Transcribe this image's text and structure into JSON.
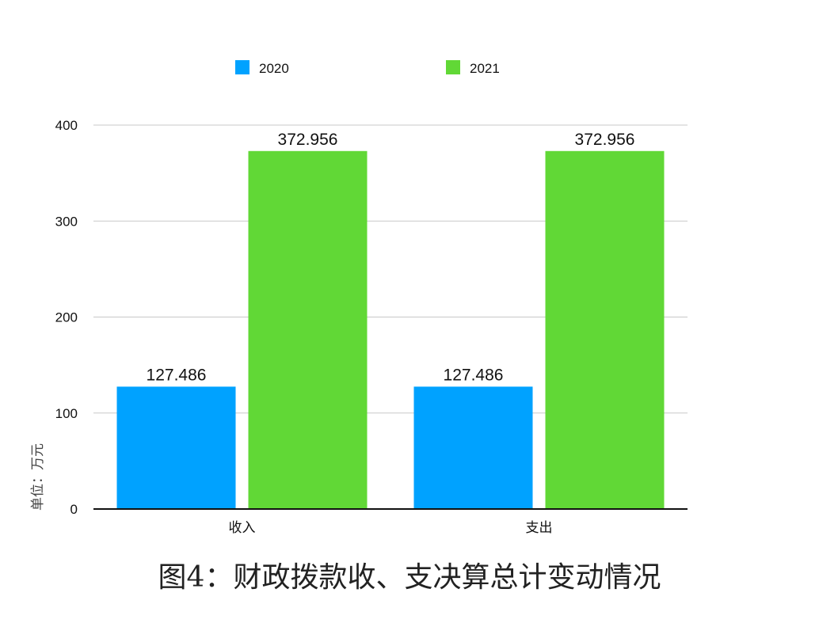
{
  "chart_data": {
    "type": "bar",
    "title": "图4：财政拨款收、支决算总计变动情况",
    "ylabel": "单位：万元",
    "xlabel": "",
    "categories": [
      "收入",
      "支出"
    ],
    "series": [
      {
        "name": "2020",
        "values": [
          127.486,
          127.486
        ],
        "labels": [
          "127.486",
          "127.486"
        ],
        "color": "#00A2FF"
      },
      {
        "name": "2021",
        "values": [
          372.956,
          372.956
        ],
        "labels": [
          "372.956",
          "372.956"
        ],
        "color": "#61D836"
      }
    ],
    "yticks": [
      0,
      100,
      200,
      300,
      400
    ],
    "ylim": [
      0,
      400
    ],
    "grid": true,
    "legend_position": "top"
  }
}
